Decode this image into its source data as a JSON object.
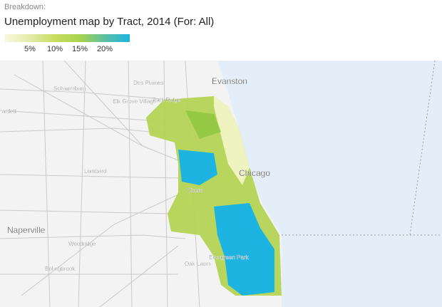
{
  "header": {
    "breakdown": "Breakdown:",
    "title": "Unemployment map by Tract, 2014 (For: All)"
  },
  "legend": {
    "range": [
      0,
      25
    ],
    "colors": [
      "#f7f8dc",
      "#e3ecaa",
      "#c7dd5e",
      "#a8d34c",
      "#5cc0a0",
      "#1db4e2"
    ],
    "ticks": [
      {
        "value": 5,
        "label": "5%"
      },
      {
        "value": 10,
        "label": "10%"
      },
      {
        "value": 15,
        "label": "15%"
      },
      {
        "value": 20,
        "label": "20%"
      }
    ]
  },
  "map": {
    "labels": [
      "Evanston",
      "Des Plaines",
      "Schaumburg",
      "artlett",
      "Elk Grove Village",
      "Park Ridge",
      "Chicago",
      "Lombard",
      "Cicero",
      "Naperville",
      "Woodridge",
      "Evergreen Park",
      "Oak Lawn",
      "Bolingbrook"
    ]
  }
}
